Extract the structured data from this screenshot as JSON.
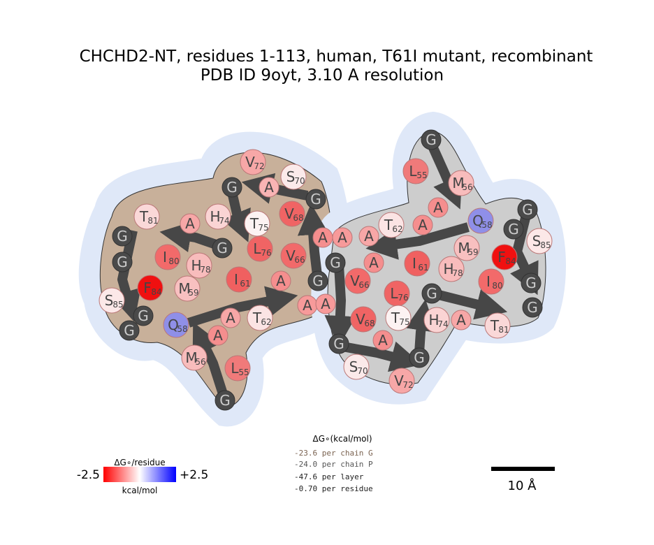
{
  "header": {
    "title": "CHCHD2-NT, residues 1-113, human, T61I mutant, recombinant",
    "subtitle": "PDB ID 9oyt, 3.10 A resolution"
  },
  "left_chain": {
    "residues": [
      {
        "letter": "G",
        "color": "#4a4a4a"
      },
      {
        "letter": "L",
        "number": "55",
        "color": "#f07a7a"
      },
      {
        "letter": "M",
        "number": "56",
        "color": "#f8bcbc"
      },
      {
        "letter": "A",
        "color": "#f58e8e"
      },
      {
        "letter": "Q",
        "number": "58",
        "color": "#8f8fe8"
      },
      {
        "letter": "A",
        "color": "#f7a7a7"
      },
      {
        "letter": "T",
        "number": "62",
        "color": "#fbe4e4"
      },
      {
        "letter": "A",
        "color": "#f79a9a"
      },
      {
        "letter": "A",
        "color": "#f58e8e"
      },
      {
        "letter": "G",
        "color": "#4a4a4a"
      },
      {
        "letter": "V",
        "number": "66",
        "color": "#f26a6a"
      },
      {
        "letter": "V",
        "number": "68",
        "color": "#f06464"
      },
      {
        "letter": "A",
        "color": "#f58e8e"
      },
      {
        "letter": "G",
        "color": "#4a4a4a"
      },
      {
        "letter": "S",
        "number": "70",
        "color": "#fbeaea"
      },
      {
        "letter": "A",
        "color": "#f8b4b4"
      },
      {
        "letter": "V",
        "number": "72",
        "color": "#f7a7a7"
      },
      {
        "letter": "G",
        "color": "#4a4a4a"
      },
      {
        "letter": "H",
        "number": "74",
        "color": "#fad4d4"
      },
      {
        "letter": "T",
        "number": "75",
        "color": "#fcf2f2"
      },
      {
        "letter": "L",
        "number": "76",
        "color": "#f06464"
      },
      {
        "letter": "G",
        "color": "#4a4a4a"
      },
      {
        "letter": "A",
        "color": "#f7a7a7"
      },
      {
        "letter": "T",
        "number": "81",
        "color": "#fad8d8"
      },
      {
        "letter": "G",
        "color": "#4a4a4a"
      },
      {
        "letter": "G",
        "color": "#4a4a4a"
      },
      {
        "letter": "I",
        "number": "80",
        "color": "#f26a6a"
      },
      {
        "letter": "H",
        "number": "78",
        "color": "#f8bcbc"
      },
      {
        "letter": "M",
        "number": "59",
        "color": "#f8c0c0"
      },
      {
        "letter": "I",
        "number": "61",
        "color": "#f06060"
      },
      {
        "letter": "F",
        "number": "84",
        "color": "#f01010"
      },
      {
        "letter": "S",
        "number": "85",
        "color": "#fce8e8"
      },
      {
        "letter": "G",
        "color": "#4a4a4a"
      },
      {
        "letter": "G",
        "color": "#4a4a4a"
      }
    ]
  },
  "right_chain": {
    "residues": [
      {
        "letter": "G",
        "color": "#4a4a4a"
      },
      {
        "letter": "L",
        "number": "55",
        "color": "#f07a7a"
      },
      {
        "letter": "M",
        "number": "56",
        "color": "#f8bcbc"
      },
      {
        "letter": "A",
        "color": "#f58e8e"
      },
      {
        "letter": "A",
        "color": "#f58e8e"
      },
      {
        "letter": "Q",
        "number": "58",
        "color": "#8f8fe8"
      },
      {
        "letter": "G",
        "color": "#4a4a4a"
      },
      {
        "letter": "G",
        "color": "#4a4a4a"
      },
      {
        "letter": "S",
        "number": "85",
        "color": "#fce8e8"
      },
      {
        "letter": "F",
        "number": "84",
        "color": "#f01010"
      },
      {
        "letter": "M",
        "number": "59",
        "color": "#f8c0c0"
      },
      {
        "letter": "H",
        "number": "78",
        "color": "#f8bcbc"
      },
      {
        "letter": "I",
        "number": "61",
        "color": "#f06060"
      },
      {
        "letter": "T",
        "number": "62",
        "color": "#fbe4e4"
      },
      {
        "letter": "A",
        "color": "#f7a7a7"
      },
      {
        "letter": "A",
        "color": "#f79a9a"
      },
      {
        "letter": "A",
        "color": "#f58e8e"
      },
      {
        "letter": "G",
        "color": "#4a4a4a"
      },
      {
        "letter": "V",
        "number": "66",
        "color": "#f26a6a"
      },
      {
        "letter": "I",
        "number": "80",
        "color": "#f26a6a"
      },
      {
        "letter": "G",
        "color": "#4a4a4a"
      },
      {
        "letter": "G",
        "color": "#4a4a4a"
      },
      {
        "letter": "T",
        "number": "81",
        "color": "#fad8d8"
      },
      {
        "letter": "A",
        "color": "#f7a7a7"
      },
      {
        "letter": "H",
        "number": "74",
        "color": "#fad4d4"
      },
      {
        "letter": "L",
        "number": "76",
        "color": "#f06464"
      },
      {
        "letter": "G",
        "color": "#4a4a4a"
      },
      {
        "letter": "T",
        "number": "75",
        "color": "#fcf2f2"
      },
      {
        "letter": "V",
        "number": "68",
        "color": "#f06464"
      },
      {
        "letter": "A",
        "color": "#f58e8e"
      },
      {
        "letter": "G",
        "color": "#4a4a4a"
      },
      {
        "letter": "A",
        "color": "#f79a9a"
      },
      {
        "letter": "S",
        "number": "70",
        "color": "#fbeaea"
      },
      {
        "letter": "V",
        "number": "72",
        "color": "#f7a7a7"
      },
      {
        "letter": "G",
        "color": "#4a4a4a"
      }
    ]
  },
  "legend": {
    "title": "ΔG∘/residue",
    "min": "-2.5",
    "max": "+2.5",
    "unit": "kcal/mol"
  },
  "energy": {
    "title": "ΔG∘(kcal/mol)",
    "lines": [
      "-23.6 per chain G",
      "-24.0 per chain P",
      "-47.6 per layer",
      "-0.70 per residue"
    ]
  },
  "scale_bar": {
    "label": "10 Å"
  }
}
